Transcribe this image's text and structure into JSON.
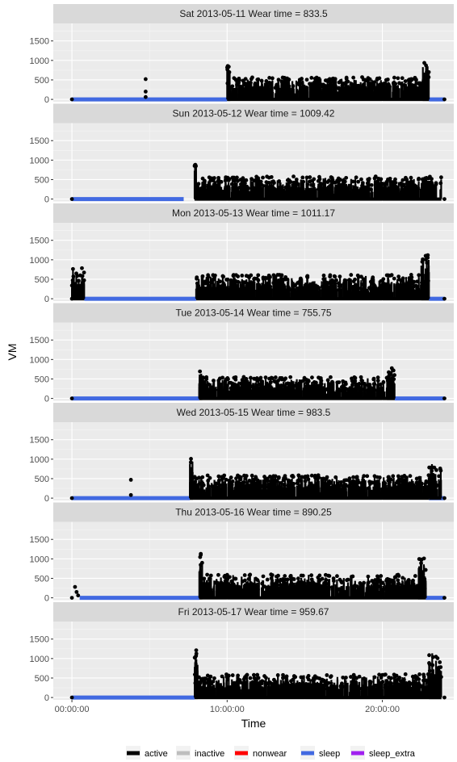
{
  "chart_data": {
    "type": "scatter",
    "ylabel": "VM",
    "xlabel": "Time",
    "ylim": [
      -60,
      1950
    ],
    "xlim_hours": [
      -1.2,
      24.6
    ],
    "x_tick_labels": [
      "00:00:00",
      "10:00:00",
      "20:00:00"
    ],
    "x_tick_hours": [
      0,
      10,
      20
    ],
    "y_ticks": [
      0,
      500,
      1000,
      1500
    ],
    "y_tick_labels": [
      "0",
      "500",
      "1000",
      "1500"
    ],
    "grid": true,
    "legend_position": "bottom",
    "legend": [
      {
        "label": "active",
        "color": "#000000"
      },
      {
        "label": "inactive",
        "color": "#bebebe"
      },
      {
        "label": "nonwear",
        "color": "#ff0000"
      },
      {
        "label": "sleep",
        "color": "#4169e1"
      },
      {
        "label": "sleep_extra",
        "color": "#a020f0"
      }
    ],
    "panels": [
      {
        "label": "Sat 2013-05-11    Wear time = 833.5",
        "sleep": [
          [
            0,
            10.0
          ],
          [
            23.0,
            24.0
          ]
        ],
        "pre_points": [
          [
            4.75,
            520
          ],
          [
            4.75,
            200
          ],
          [
            4.75,
            60
          ]
        ],
        "bursts": [
          {
            "start": 10.0,
            "end": 23.0,
            "base": 420,
            "var": 150
          },
          {
            "start": 10.0,
            "end": 10.2,
            "base": 750,
            "var": 150
          },
          {
            "start": 22.6,
            "end": 23.0,
            "base": 700,
            "var": 250
          }
        ]
      },
      {
        "label": "Sun 2013-05-12    Wear time = 1009.42",
        "sleep": [
          [
            0,
            7.2
          ]
        ],
        "pre_points": [],
        "bursts": [
          {
            "start": 8.0,
            "end": 23.8,
            "base": 400,
            "var": 180
          },
          {
            "start": 7.9,
            "end": 8.0,
            "base": 860,
            "var": 20
          }
        ]
      },
      {
        "label": "Mon 2013-05-13    Wear time = 1011.17",
        "sleep": [
          [
            0.8,
            8.0
          ],
          [
            23.0,
            24.0
          ]
        ],
        "pre_points": [],
        "bursts": [
          {
            "start": 0.0,
            "end": 0.8,
            "base": 500,
            "var": 300
          },
          {
            "start": 8.0,
            "end": 23.0,
            "base": 420,
            "var": 200
          },
          {
            "start": 22.5,
            "end": 23.0,
            "base": 900,
            "var": 250
          }
        ]
      },
      {
        "label": "Tue 2013-05-14    Wear time = 755.75",
        "sleep": [
          [
            0,
            8.2
          ],
          [
            20.8,
            24.0
          ]
        ],
        "pre_points": [],
        "bursts": [
          {
            "start": 8.2,
            "end": 20.8,
            "base": 380,
            "var": 180
          },
          {
            "start": 8.2,
            "end": 8.4,
            "base": 700,
            "var": 80
          },
          {
            "start": 20.3,
            "end": 20.8,
            "base": 600,
            "var": 200
          }
        ]
      },
      {
        "label": "Wed 2013-05-15    Wear time = 983.5",
        "sleep": [
          [
            0,
            7.6
          ],
          [
            23.0,
            24.0
          ]
        ],
        "pre_points": [
          [
            3.8,
            470
          ],
          [
            3.8,
            80
          ]
        ],
        "bursts": [
          {
            "start": 7.6,
            "end": 23.0,
            "base": 420,
            "var": 170
          },
          {
            "start": 7.6,
            "end": 7.8,
            "base": 950,
            "var": 120
          },
          {
            "start": 23.0,
            "end": 23.8,
            "base": 600,
            "var": 400
          }
        ]
      },
      {
        "label": "Thu 2013-05-16    Wear time = 890.25",
        "sleep": [
          [
            0.5,
            8.2
          ],
          [
            22.8,
            24.0
          ]
        ],
        "pre_points": [
          [
            0.2,
            280
          ],
          [
            0.3,
            150
          ],
          [
            0.4,
            60
          ]
        ],
        "bursts": [
          {
            "start": 8.2,
            "end": 22.8,
            "base": 400,
            "var": 200
          },
          {
            "start": 8.2,
            "end": 8.4,
            "base": 1000,
            "var": 180
          },
          {
            "start": 22.3,
            "end": 22.8,
            "base": 850,
            "var": 200
          }
        ]
      },
      {
        "label": "Fri 2013-05-17    Wear time = 959.67",
        "sleep": [
          [
            0,
            7.9
          ]
        ],
        "pre_points": [],
        "bursts": [
          {
            "start": 7.9,
            "end": 23.8,
            "base": 400,
            "var": 200
          },
          {
            "start": 7.9,
            "end": 8.1,
            "base": 1100,
            "var": 130
          },
          {
            "start": 23.0,
            "end": 23.8,
            "base": 700,
            "var": 500
          }
        ]
      }
    ]
  }
}
